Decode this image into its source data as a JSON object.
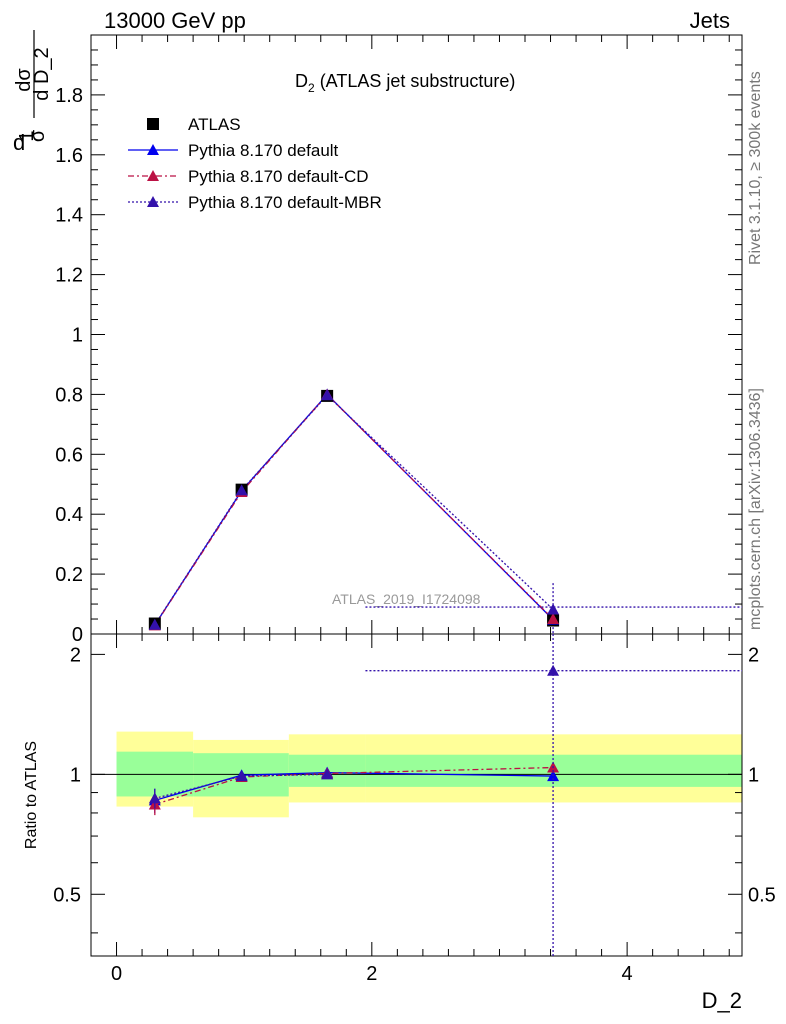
{
  "header": {
    "left": "13000 GeV pp",
    "right": "Jets"
  },
  "side": {
    "rivet": "Rivet 3.1.10, ≥ 300k events",
    "mcplots": "mcplots.cern.ch [arXiv:1306.3436]"
  },
  "chart_data": {
    "type": "scatter",
    "title": "D₂ (ATLAS jet substructure)",
    "title_main": "D",
    "title_sub": "2",
    "title_rest": " (ATLAS jet substructure)",
    "analysis_label": "ATLAS_2019_I1724098",
    "xlabel": "D_2",
    "ylabel_num": "dσ",
    "ylabel_den": "d D_2",
    "ylabel_pre_num": "1",
    "ylabel_pre_den": "σ",
    "ylabel_pre_d": "d",
    "ratio_ylabel": "Ratio to ATLAS",
    "xlim": [
      -0.2,
      4.9
    ],
    "ylim": [
      0,
      2.0
    ],
    "ratio_ylim": [
      0.35,
      2.25
    ],
    "x_ticks": [
      0,
      2,
      4
    ],
    "x_tick_labels": [
      "0",
      "2",
      "4"
    ],
    "y_ticks": [
      0,
      0.2,
      0.4,
      0.6,
      0.8,
      1,
      1.2,
      1.4,
      1.6,
      1.8
    ],
    "y_tick_labels": [
      "0",
      "0.2",
      "0.4",
      "0.6",
      "0.8",
      "1",
      "1.2",
      "1.4",
      "1.6",
      "1.8"
    ],
    "ratio_ticks": [
      0.5,
      1,
      2
    ],
    "ratio_tick_labels": [
      "0.5",
      "1",
      "2"
    ],
    "bins": [
      {
        "lo": 0.0,
        "hi": 0.6
      },
      {
        "lo": 0.6,
        "hi": 1.35
      },
      {
        "lo": 1.35,
        "hi": 1.95
      },
      {
        "lo": 1.95,
        "hi": 4.9
      }
    ],
    "x": [
      0.3,
      0.98,
      1.65,
      3.42
    ],
    "data": {
      "name": "ATLAS",
      "values": [
        0.035,
        0.482,
        0.795,
        0.045
      ],
      "band_inner": [
        [
          0.88,
          1.14
        ],
        [
          0.88,
          1.13
        ],
        [
          0.93,
          1.12
        ],
        [
          0.93,
          1.12
        ]
      ],
      "band_outer": [
        [
          0.83,
          1.28
        ],
        [
          0.78,
          1.22
        ],
        [
          0.85,
          1.26
        ],
        [
          0.85,
          1.26
        ]
      ]
    },
    "series": [
      {
        "name": "Pythia 8.170 default",
        "color": "#0000ee",
        "dash": "",
        "values": [
          0.03,
          0.478,
          0.8,
          0.048
        ],
        "ratio": [
          0.86,
          0.995,
          1.01,
          0.99
        ],
        "ratio_err": [
          0.06,
          0.01,
          0.005,
          0
        ]
      },
      {
        "name": "Pythia 8.170 default-CD",
        "color": "#bb1144",
        "dash": "6,3,2,3",
        "values": [
          0.029,
          0.474,
          0.799,
          0.05
        ],
        "ratio": [
          0.84,
          0.985,
          1.005,
          1.04
        ],
        "ratio_err": [
          0.05,
          0.01,
          0.005,
          0
        ]
      },
      {
        "name": "Pythia 8.170 default-MBR",
        "color": "#3311aa",
        "dash": "2,2",
        "values": [
          0.031,
          0.48,
          0.797,
          0.082
        ],
        "ratio": [
          0.87,
          0.99,
          1.0,
          1.82
        ],
        "ratio_err": [
          0.05,
          0.01,
          0.005,
          1.5
        ],
        "extra_line": {
          "from": 1.95,
          "to": 4.9,
          "value": 0.09,
          "ratio": 1.82
        }
      }
    ],
    "legend_position": "top-left"
  }
}
